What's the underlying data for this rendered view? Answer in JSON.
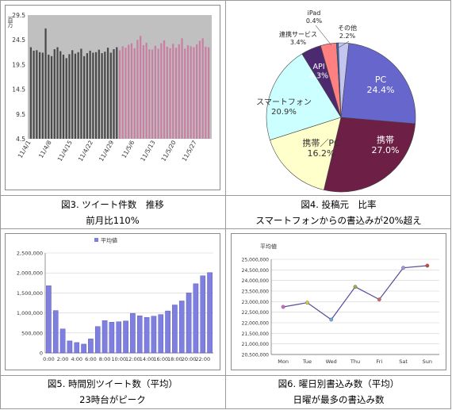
{
  "captions": {
    "fig3_line1": "図3. ツイート件数　推移",
    "fig3_line2": "前月比110%",
    "fig4_line1": "図4. 投稿元　比率",
    "fig4_line2": "スマートフォンからの書込みが20%超え",
    "fig5_line1": "図5. 時間別ツイート数（平均）",
    "fig5_line2": "23時台がピーク",
    "fig6_line1": "図6. 曜日別書込み数（平均）",
    "fig6_line2": "日曜が最多の書込み数"
  },
  "colors": {
    "may_bar": "#c97fa2",
    "april_bar": "#4a4a4a",
    "plot_bg": "#c0c0c0",
    "hourly_bar": "#7f7fe0",
    "line": "#5a4a9a"
  },
  "chart_data": [
    {
      "type": "bar",
      "title": "",
      "ylabel": "百万",
      "ylim": [
        4.5,
        29.5
      ],
      "y_ticks": [
        "29.5",
        "24.5",
        "19.5",
        "14.5",
        "9.5",
        "4.5"
      ],
      "x_tick_labels": [
        "11/4/1",
        "11/4/8",
        "11/4/15",
        "11/4/22",
        "11/4/29",
        "11/5/6",
        "11/5/13",
        "11/5/20",
        "11/5/27"
      ],
      "series": [
        {
          "values": [
            23.0,
            22.3,
            22.4,
            22.0,
            21.9,
            26.8,
            21.5,
            21.2,
            22.6,
            23.0,
            22.2,
            21.5,
            20.8,
            21.6,
            22.4,
            21.7,
            22.0,
            22.7,
            21.2,
            21.8,
            22.3,
            21.9,
            22.0,
            22.5,
            21.8,
            22.1,
            22.9,
            21.9,
            22.6,
            23.0
          ]
        },
        {
          "values": [
            22.4,
            23.2,
            22.9,
            23.5,
            23.8,
            22.8,
            24.5,
            25.3,
            23.4,
            23.9,
            22.6,
            22.5,
            23.3,
            22.7,
            23.8,
            24.4,
            23.1,
            22.8,
            23.7,
            22.9,
            23.6,
            24.8,
            22.7,
            23.4,
            23.2,
            23.0,
            23.6,
            24.3,
            24.8,
            23.1,
            23.0
          ]
        }
      ],
      "grid": false,
      "legend": "none"
    },
    {
      "type": "pie",
      "title": "",
      "slices": [
        {
          "label": "PC",
          "value": 24.4,
          "color": "#6666cc"
        },
        {
          "label": "携帯",
          "value": 27.0,
          "color": "#6e1f45"
        },
        {
          "label": "携帯／PC",
          "value": 16.2,
          "color": "#ffffcc"
        },
        {
          "label": "スマートフォン",
          "value": 20.9,
          "color": "#ccffff"
        },
        {
          "label": "API",
          "value": 4.3,
          "color": "#4d2a70"
        },
        {
          "label": "連携サービス",
          "value": 3.4,
          "color": "#ff8080"
        },
        {
          "label": "iPad",
          "value": 0.4,
          "color": "#2f63c0"
        },
        {
          "label": "その他",
          "value": 2.2,
          "color": "#c4c4f0"
        }
      ],
      "legend": "none"
    },
    {
      "type": "bar",
      "title": "",
      "legend_label": "平均値",
      "legend": "top-center",
      "ylim": [
        0,
        2500000
      ],
      "y_ticks": [
        "2,500,000",
        "2,000,000",
        "1,500,000",
        "1,000,000",
        "500,000",
        "0"
      ],
      "categories": [
        "0:00",
        "1:00",
        "2:00",
        "3:00",
        "4:00",
        "5:00",
        "6:00",
        "7:00",
        "8:00",
        "9:00",
        "10:00",
        "11:00",
        "12:00",
        "13:00",
        "14:00",
        "15:00",
        "16:00",
        "17:00",
        "18:00",
        "19:00",
        "20:00",
        "21:00",
        "22:00",
        "23:00"
      ],
      "x_tick_labels": [
        "0:00",
        "2:00",
        "4:00",
        "6:00",
        "8:00",
        "10:00",
        "12:00",
        "14:00",
        "16:00",
        "18:00",
        "20:00",
        "22:00"
      ],
      "values": [
        1680000,
        1060000,
        600000,
        300000,
        260000,
        220000,
        350000,
        660000,
        810000,
        770000,
        780000,
        800000,
        990000,
        930000,
        890000,
        920000,
        960000,
        1050000,
        1200000,
        1300000,
        1500000,
        1730000,
        1930000,
        2010000
      ],
      "grid": true
    },
    {
      "type": "line",
      "title": "",
      "legend_label": "平均値",
      "legend": "top-left",
      "ylim": [
        20500000,
        25000000
      ],
      "y_ticks": [
        "25,000,000",
        "24,500,000",
        "24,000,000",
        "23,500,000",
        "23,000,000",
        "22,500,000",
        "22,000,000",
        "21,500,000",
        "21,000,000",
        "20,500,000"
      ],
      "categories": [
        "Mon",
        "Tue",
        "Wed",
        "Thu",
        "Fri",
        "Sat",
        "Sun"
      ],
      "values": [
        22750000,
        22950000,
        22150000,
        23700000,
        23100000,
        24600000,
        24700000
      ],
      "marker_colors": [
        "#cc66cc",
        "#cccc44",
        "#66aadd",
        "#aaaa44",
        "#cc6666",
        "#9999dd",
        "#cc4444"
      ],
      "grid": true
    }
  ]
}
